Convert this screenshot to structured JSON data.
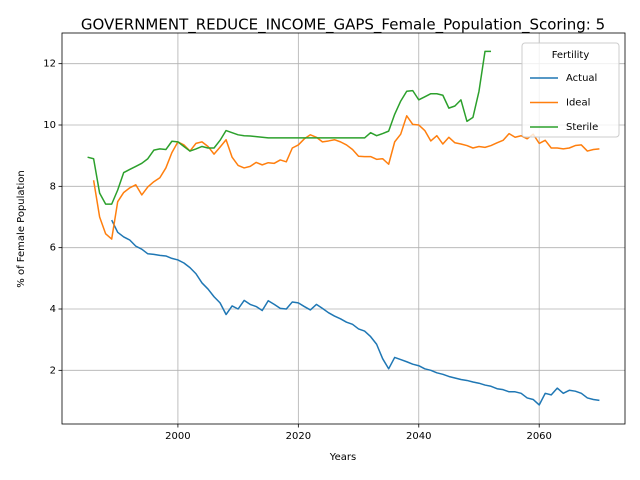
{
  "chart_data": {
    "type": "line",
    "title": "GOVERNMENT_REDUCE_INCOME_GAPS_Female_Population_Scoring: 5",
    "xlabel": "Years",
    "ylabel": "% of Female Population",
    "legend_title": "Fertility",
    "legend_position": "upper right",
    "grid": true,
    "xlim": [
      1980.75,
      2074.25
    ],
    "ylim": [
      0.25,
      13.0
    ],
    "xticks": [
      2000,
      2020,
      2040,
      2060
    ],
    "yticks": [
      2,
      4,
      6,
      8,
      10,
      12
    ],
    "x": [
      1985,
      1986,
      1987,
      1988,
      1989,
      1990,
      1991,
      1992,
      1993,
      1994,
      1995,
      1996,
      1997,
      1998,
      1999,
      2000,
      2001,
      2002,
      2003,
      2004,
      2005,
      2006,
      2007,
      2008,
      2009,
      2010,
      2011,
      2012,
      2013,
      2014,
      2015,
      2016,
      2017,
      2018,
      2019,
      2020,
      2021,
      2022,
      2023,
      2024,
      2025,
      2026,
      2027,
      2028,
      2029,
      2030,
      2031,
      2032,
      2033,
      2034,
      2035,
      2036,
      2037,
      2038,
      2039,
      2040,
      2041,
      2042,
      2043,
      2044,
      2045,
      2046,
      2047,
      2048,
      2049,
      2050,
      2051,
      2052,
      2053,
      2054,
      2055,
      2056,
      2057,
      2058,
      2059,
      2060,
      2061,
      2062,
      2063,
      2064,
      2065,
      2066,
      2067,
      2068,
      2069,
      2070
    ],
    "series": [
      {
        "name": "Actual",
        "color": "#1f77b4",
        "values": [
          null,
          null,
          null,
          null,
          6.9,
          6.5,
          6.35,
          6.25,
          6.05,
          5.95,
          5.8,
          5.78,
          5.75,
          5.73,
          5.65,
          5.6,
          5.5,
          5.35,
          5.15,
          4.85,
          4.65,
          4.4,
          4.2,
          3.82,
          4.1,
          4.0,
          4.28,
          4.15,
          4.08,
          3.95,
          4.27,
          4.15,
          4.02,
          4.0,
          4.23,
          4.2,
          4.08,
          3.97,
          4.15,
          4.02,
          3.88,
          3.77,
          3.68,
          3.57,
          3.5,
          3.35,
          3.28,
          3.1,
          2.85,
          2.38,
          2.05,
          2.42,
          2.35,
          2.28,
          2.2,
          2.15,
          2.05,
          2.0,
          1.92,
          1.87,
          1.8,
          1.75,
          1.7,
          1.67,
          1.62,
          1.58,
          1.52,
          1.48,
          1.4,
          1.37,
          1.3,
          1.3,
          1.25,
          1.1,
          1.05,
          0.87,
          1.25,
          1.2,
          1.42,
          1.25,
          1.35,
          1.32,
          1.25,
          1.1,
          1.05,
          1.02
        ]
      },
      {
        "name": "Ideal",
        "color": "#ff7f0e",
        "values": [
          null,
          8.2,
          7.0,
          6.45,
          6.28,
          7.5,
          7.8,
          7.95,
          8.05,
          7.72,
          7.98,
          8.15,
          8.28,
          8.6,
          9.1,
          9.45,
          9.35,
          9.15,
          9.4,
          9.45,
          9.3,
          9.05,
          9.28,
          9.52,
          8.95,
          8.68,
          8.6,
          8.65,
          8.78,
          8.7,
          8.77,
          8.75,
          8.86,
          8.8,
          9.25,
          9.35,
          9.55,
          9.68,
          9.6,
          9.45,
          9.48,
          9.52,
          9.45,
          9.35,
          9.2,
          8.98,
          8.97,
          8.97,
          8.88,
          8.9,
          8.72,
          9.45,
          9.7,
          10.3,
          10.02,
          10.0,
          9.82,
          9.48,
          9.65,
          9.38,
          9.6,
          9.42,
          9.38,
          9.33,
          9.25,
          9.3,
          9.27,
          9.33,
          9.42,
          9.5,
          9.72,
          9.6,
          9.65,
          9.55,
          9.7,
          9.4,
          9.5,
          9.25,
          9.25,
          9.22,
          9.25,
          9.33,
          9.35,
          9.15,
          9.2,
          9.22
        ]
      },
      {
        "name": "Sterile",
        "color": "#2ca02c",
        "values": [
          8.95,
          8.9,
          7.78,
          7.42,
          7.42,
          7.88,
          8.45,
          8.55,
          8.65,
          8.75,
          8.9,
          9.18,
          9.22,
          9.2,
          9.47,
          9.45,
          9.3,
          9.15,
          9.22,
          9.3,
          9.25,
          9.25,
          9.5,
          9.82,
          9.75,
          9.68,
          9.65,
          9.64,
          9.62,
          9.6,
          9.58,
          9.58,
          9.58,
          9.58,
          9.58,
          9.58,
          9.58,
          9.58,
          9.58,
          9.58,
          9.58,
          9.58,
          9.58,
          9.58,
          9.58,
          9.58,
          9.58,
          9.75,
          9.65,
          9.72,
          9.8,
          10.35,
          10.78,
          11.1,
          11.12,
          10.82,
          10.92,
          11.02,
          11.02,
          10.97,
          10.55,
          10.62,
          10.82,
          10.12,
          10.25,
          11.1,
          12.4,
          12.4,
          null,
          null,
          null,
          null,
          null,
          null,
          null,
          null,
          null,
          null,
          null,
          null,
          null,
          null,
          null,
          null,
          null,
          null
        ]
      }
    ]
  }
}
